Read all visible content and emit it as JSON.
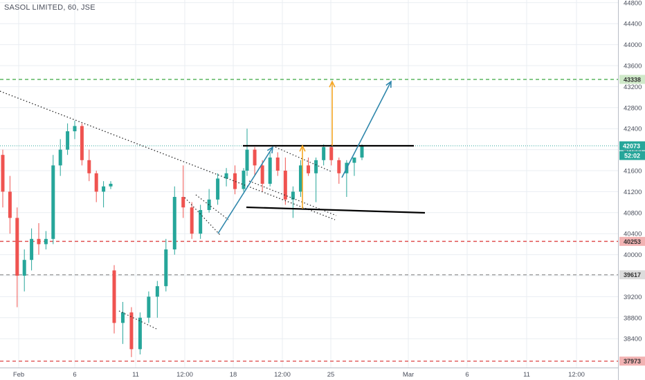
{
  "header": {
    "title": "SASOL LIMITED, 60, JSE"
  },
  "colors": {
    "up": "#26a69a",
    "down": "#ef5350",
    "grid": "#e9edf2",
    "axis_text": "#4a4f5c",
    "green_level": "#4caf50",
    "red_level": "#e05050",
    "grey_level": "#9e9e9e",
    "current_price": "#26a69a",
    "orange_arrow": "#f5a623",
    "blue_arrow": "#2e86ab",
    "trendline": "#000000"
  },
  "chart_data": {
    "type": "candlestick",
    "symbol": "SASOL LIMITED",
    "interval": "60",
    "exchange": "JSE",
    "ylim": [
      37850,
      44850
    ],
    "y_ticks": [
      38400,
      38800,
      39200,
      39600,
      40000,
      40400,
      40800,
      41200,
      41600,
      42000,
      42400,
      42800,
      43200,
      43600,
      44000,
      44400,
      44800
    ],
    "x_tick_labels": [
      "Feb",
      "6",
      "11",
      "12:00",
      "18",
      "12:00",
      "25",
      "Mar",
      "6",
      "11",
      "12:00"
    ],
    "horizontal_levels": [
      {
        "label": "43338",
        "value": 43338,
        "style": "green-dashed"
      },
      {
        "label": "40253",
        "value": 40253,
        "style": "red-dashed"
      },
      {
        "label": "39617",
        "value": 39617,
        "style": "grey-dashed"
      },
      {
        "label": "37973",
        "value": 37973,
        "style": "red-dashed"
      }
    ],
    "current_price": {
      "label": "42073",
      "value": 42073,
      "countdown": "52:02"
    },
    "candles_approx": [
      [
        41900,
        42000,
        40900,
        41200
      ],
      [
        41200,
        41500,
        40400,
        40700
      ],
      [
        40700,
        40900,
        39000,
        39600
      ],
      [
        39600,
        40100,
        39300,
        39900
      ],
      [
        39900,
        40500,
        39700,
        40300
      ],
      [
        40300,
        40600,
        40000,
        40200
      ],
      [
        40200,
        40450,
        40100,
        40300
      ],
      [
        40300,
        41900,
        40200,
        41700
      ],
      [
        41700,
        42200,
        41500,
        42000
      ],
      [
        42000,
        42500,
        41900,
        42350
      ],
      [
        42350,
        42550,
        42200,
        42450
      ],
      [
        42450,
        42500,
        41700,
        41800
      ],
      [
        41800,
        42000,
        41400,
        41550
      ],
      [
        41550,
        41600,
        41000,
        41200
      ],
      [
        41200,
        41400,
        40900,
        41300
      ],
      [
        41300,
        41400,
        41250,
        41350
      ],
      [
        39700,
        39800,
        38500,
        38700
      ],
      [
        38700,
        39100,
        38300,
        38900
      ],
      [
        38900,
        39000,
        38050,
        38200
      ],
      [
        38200,
        38900,
        38100,
        38800
      ],
      [
        38800,
        39300,
        38700,
        39200
      ],
      [
        39200,
        39500,
        38800,
        39400
      ],
      [
        39400,
        40300,
        39300,
        40100
      ],
      [
        40100,
        41300,
        40000,
        41100
      ],
      [
        41100,
        41700,
        40700,
        40900
      ],
      [
        40900,
        41000,
        40300,
        40400
      ],
      [
        40400,
        40950,
        40300,
        40850
      ],
      [
        40850,
        41250,
        40800,
        41050
      ],
      [
        41050,
        41550,
        40950,
        41450
      ],
      [
        41450,
        41650,
        41300,
        41550
      ],
      [
        41550,
        41700,
        41150,
        41250
      ],
      [
        41250,
        41650,
        41200,
        41600
      ],
      [
        41600,
        42400,
        41500,
        42000
      ],
      [
        42000,
        42050,
        41500,
        41700
      ],
      [
        41700,
        41800,
        41200,
        41350
      ],
      [
        41350,
        41950,
        41300,
        41850
      ],
      [
        41850,
        41950,
        41500,
        41600
      ],
      [
        41600,
        41850,
        40950,
        41050
      ],
      [
        41050,
        41300,
        40700,
        41200
      ],
      [
        41200,
        41800,
        41100,
        41700
      ],
      [
        41700,
        41850,
        41500,
        41550
      ],
      [
        41550,
        41850,
        41000,
        41800
      ],
      [
        41800,
        42100,
        41700,
        42050
      ],
      [
        42050,
        42100,
        41700,
        41800
      ],
      [
        41800,
        41850,
        41350,
        41550
      ],
      [
        41550,
        41800,
        41100,
        41750
      ],
      [
        41750,
        41850,
        41500,
        41850
      ],
      [
        41850,
        42100,
        41800,
        42073
      ]
    ],
    "drawings": [
      {
        "kind": "dotted-trendline",
        "from": [
          "Feb",
          43050
        ],
        "to": [
          "20",
          41400
        ]
      },
      {
        "kind": "resistance-line",
        "from": [
          "19",
          42073
        ],
        "to": [
          "Mar",
          42073
        ]
      },
      {
        "kind": "support-line",
        "from": [
          "19",
          40900
        ],
        "to": [
          "Mar",
          40800
        ]
      },
      {
        "kind": "orange-arrow",
        "target": 42050
      },
      {
        "kind": "orange-arrow",
        "target": 43338
      },
      {
        "kind": "blue-arrow",
        "from": 40800,
        "target": 43350
      },
      {
        "kind": "blue-arrow",
        "from": 40300,
        "target": 42000
      }
    ]
  }
}
